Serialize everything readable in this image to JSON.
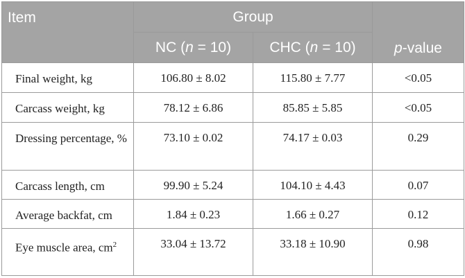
{
  "header": {
    "item": "Item",
    "group": "Group",
    "nc_prefix": "NC (",
    "chc_prefix": "CHC (",
    "n_var": "n",
    "n_eq": " = 10)",
    "p_var": "p",
    "p_suffix": "-value"
  },
  "rows": [
    {
      "label": "Final weight, kg",
      "nc": "106.80 ± 8.02",
      "chc": "115.80 ± 7.77",
      "p": "<0.05"
    },
    {
      "label": "Carcass weight, kg",
      "nc": "78.12 ± 6.86",
      "chc": "85.85 ± 5.85",
      "p": "<0.05"
    },
    {
      "label": "Dressing percentage, %",
      "nc": "73.10 ± 0.02",
      "chc": "74.17 ± 0.03",
      "p": "0.29"
    },
    {
      "label": "Carcass length, cm",
      "nc": "99.90 ± 5.24",
      "chc": "104.10 ± 4.43",
      "p": "0.07"
    },
    {
      "label": "Average backfat, cm",
      "nc": "1.84 ± 0.23",
      "chc": "1.66 ± 0.27",
      "p": "0.12"
    },
    {
      "label": "Eye muscle area, cm",
      "label_sup": "2",
      "nc": "33.04 ± 13.72",
      "chc": "33.18 ± 10.90",
      "p": "0.98"
    }
  ]
}
